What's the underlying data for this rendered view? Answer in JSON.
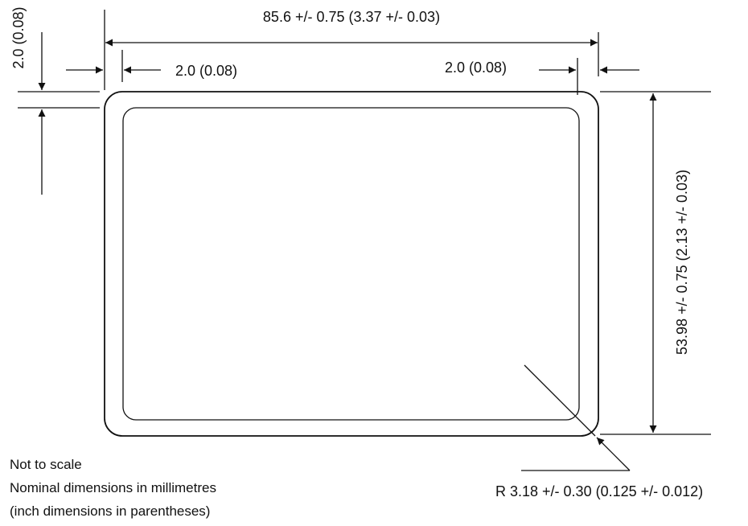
{
  "dimensions": {
    "width": "85.6 +/- 0.75 (3.37 +/- 0.03)",
    "height": "53.98 +/- 0.75 (2.13 +/- 0.03)",
    "left_margin": "2.0 (0.08)",
    "right_margin": "2.0 (0.08)",
    "top_margin": "2.0 (0.08)",
    "corner_radius": "R 3.18 +/- 0.30 (0.125 +/- 0.012)"
  },
  "notes": [
    "Not to scale",
    "Nominal dimensions in millimetres",
    "(inch dimensions in parentheses)"
  ]
}
